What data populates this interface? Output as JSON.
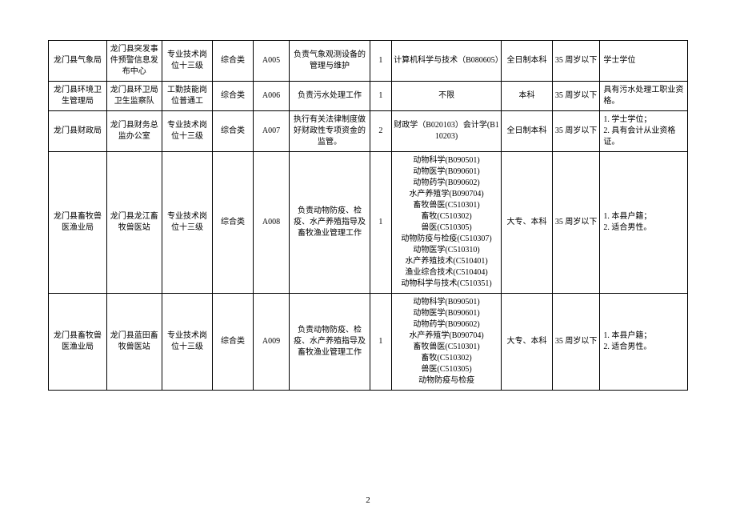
{
  "page_number": "2",
  "rows": [
    {
      "dept": "龙门县气象局",
      "unit": "龙门县突发事件预警信息发布中心",
      "position": "专业技术岗位十三级",
      "category": "综合类",
      "code": "A005",
      "duty": "负责气象观测设备的管理与维护",
      "count": "1",
      "major": "计算机科学与技术（B080605）",
      "edu": "全日制本科",
      "age": "35 周岁以下",
      "remark": "学士学位"
    },
    {
      "dept": "龙门县环境卫生管理局",
      "unit": "龙门县环卫局卫生监察队",
      "position": "工勤技能岗位普通工",
      "category": "综合类",
      "code": "A006",
      "duty": "负责污水处理工作",
      "count": "1",
      "major": "不限",
      "edu": "本科",
      "age": "35 周岁以下",
      "remark": "具有污水处理工职业资格。"
    },
    {
      "dept": "龙门县财政局",
      "unit": "龙门县财务总监办公室",
      "position": "专业技术岗位十三级",
      "category": "综合类",
      "code": "A007",
      "duty": "执行有关法律制度做好财政性专项资金的监管。",
      "count": "2",
      "major": "财政学（B020103）会计学(B110203)",
      "edu": "全日制本科",
      "age": "35 周岁以下",
      "remark": "1. 学士学位；\n2. 具有会计从业资格证。"
    },
    {
      "dept": "龙门县畜牧兽医渔业局",
      "unit": "龙门县龙江畜牧兽医站",
      "position": "专业技术岗位十三级",
      "category": "综合类",
      "code": "A008",
      "duty": "负责动物防疫、检疫、水产养殖指导及畜牧渔业管理工作",
      "count": "1",
      "major": "动物科学(B090501)\n动物医学(B090601)\n动物药学(B090602)\n水产养殖学(B090704)\n畜牧兽医(C510301)\n畜牧(C510302)\n兽医(C510305)\n动物防疫与检疫(C510307)\n动物医学(C510310)\n水产养殖技术(C510401)\n渔业综合技术(C510404)\n动物科学与技术(C510351)",
      "edu": "大专、本科",
      "age": "35 周岁以下",
      "remark": "1. 本县户籍；\n2. 适合男性。"
    },
    {
      "dept": "龙门县畜牧兽医渔业局",
      "unit": "龙门县蓝田畜牧兽医站",
      "position": "专业技术岗位十三级",
      "category": "综合类",
      "code": "A009",
      "duty": "负责动物防疫、检疫、水产养殖指导及畜牧渔业管理工作",
      "count": "1",
      "major": "动物科学(B090501)\n动物医学(B090601)\n动物药学(B090602)\n水产养殖学(B090704)\n畜牧兽医(C510301)\n畜牧(C510302)\n兽医(C510305)\n动物防疫与检疫",
      "edu": "大专、本科",
      "age": "35 周岁以下",
      "remark": "1. 本县户籍；\n2. 适合男性。"
    }
  ]
}
